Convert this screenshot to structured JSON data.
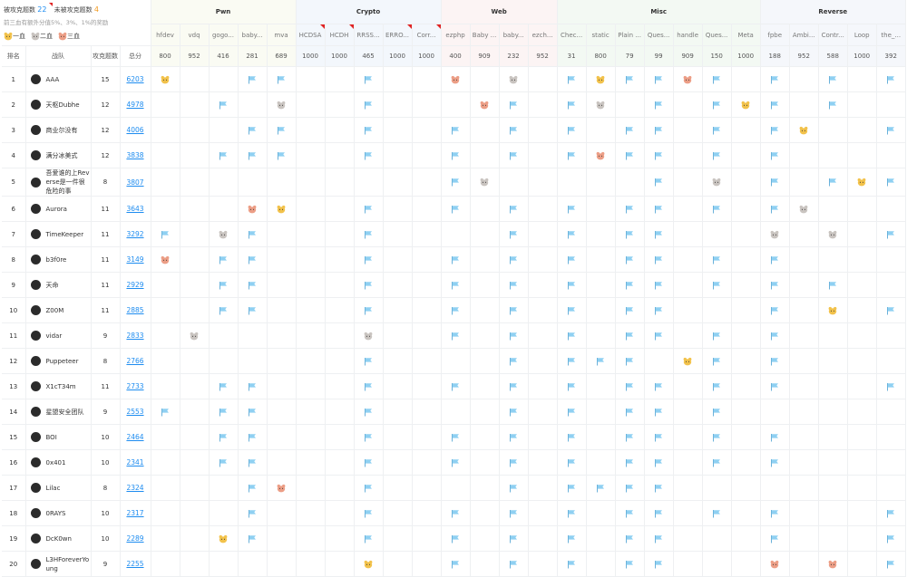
{
  "header": {
    "solved_label": "被攻克题数",
    "solved_count": 22,
    "unsolved_label": "未被攻克题数",
    "unsolved_count": 4,
    "bonus_note": "前三血有额外分值5%、3%、1%的奖励",
    "legend": [
      "一血",
      "二血",
      "三血"
    ]
  },
  "table": {
    "columns": [
      "排名",
      "战队",
      "攻克题数",
      "总分"
    ],
    "categories": [
      {
        "name": "Pwn",
        "color": "#fafbf3",
        "challenges": [
          {
            "name": "hfdev",
            "points": 800
          },
          {
            "name": "vdq",
            "points": 952
          },
          {
            "name": "gogo...",
            "points": 416
          },
          {
            "name": "baby...",
            "points": 281
          },
          {
            "name": "mva",
            "points": 689
          }
        ]
      },
      {
        "name": "Crypto",
        "color": "#f3f7fc",
        "challenges": [
          {
            "name": "HCDSA",
            "points": 1000,
            "unsolved": true
          },
          {
            "name": "HCDH",
            "points": 1000,
            "unsolved": true
          },
          {
            "name": "RRSS...",
            "points": 465
          },
          {
            "name": "ERRO...",
            "points": 1000,
            "unsolved": true
          },
          {
            "name": "Corr...",
            "points": 1000,
            "unsolved": true
          }
        ]
      },
      {
        "name": "Web",
        "color": "#fcf4f4",
        "challenges": [
          {
            "name": "ezphp",
            "points": 400
          },
          {
            "name": "Baby ...",
            "points": 909
          },
          {
            "name": "baby...",
            "points": 232
          },
          {
            "name": "ezch...",
            "points": 952
          }
        ]
      },
      {
        "name": "Misc",
        "color": "#f3f9f3",
        "challenges": [
          {
            "name": "Chec...",
            "points": 31
          },
          {
            "name": "static",
            "points": 800
          },
          {
            "name": "Plain ...",
            "points": 79
          },
          {
            "name": "Ques...",
            "points": 99
          },
          {
            "name": "handle",
            "points": 909
          },
          {
            "name": "Ques...",
            "points": 150
          },
          {
            "name": "Meta",
            "points": 1000
          }
        ]
      },
      {
        "name": "Reverse",
        "color": "#f5f7fb",
        "challenges": [
          {
            "name": "fpbe",
            "points": 188
          },
          {
            "name": "Ambi...",
            "points": 952
          },
          {
            "name": "Contr...",
            "points": 588
          },
          {
            "name": "Loop",
            "points": 1000
          },
          {
            "name": "the_...",
            "points": 392
          }
        ]
      }
    ],
    "teams": [
      {
        "rank": 1,
        "name": "AAA",
        "solved": 15,
        "score": 6203,
        "cells": [
          "gold",
          null,
          null,
          "flag",
          "flag",
          null,
          null,
          "flag",
          null,
          null,
          "bronze",
          null,
          "silver",
          null,
          "flag",
          "gold",
          "flag",
          "flag",
          "bronze",
          "flag",
          null,
          "flag",
          null,
          "flag",
          null,
          "flag"
        ]
      },
      {
        "rank": 2,
        "name": "天枢Dubhe",
        "solved": 12,
        "score": 4978,
        "cells": [
          null,
          null,
          "flag",
          null,
          "silver",
          null,
          null,
          "flag",
          null,
          null,
          null,
          "bronze",
          "flag",
          null,
          "flag",
          "silver",
          null,
          "flag",
          null,
          "flag",
          "gold",
          "flag",
          null,
          "flag",
          null,
          null
        ]
      },
      {
        "rank": 3,
        "name": "商业尔没有",
        "solved": 12,
        "score": 4006,
        "cells": [
          null,
          null,
          null,
          "flag",
          "flag",
          null,
          null,
          "flag",
          null,
          null,
          "flag",
          null,
          "flag",
          null,
          "flag",
          null,
          "flag",
          "flag",
          null,
          "flag",
          null,
          "flag",
          "gold",
          null,
          null,
          "flag"
        ]
      },
      {
        "rank": 4,
        "name": "满分冰美式",
        "solved": 12,
        "score": 3838,
        "cells": [
          null,
          null,
          "flag",
          "flag",
          "flag",
          null,
          null,
          "flag",
          null,
          null,
          "flag",
          null,
          "flag",
          null,
          "flag",
          "bronze",
          "flag",
          "flag",
          null,
          "flag",
          null,
          "flag",
          null,
          null,
          null,
          null
        ]
      },
      {
        "rank": 5,
        "name": "吾爱谁的上Reverse是一件很危险的事",
        "solved": 8,
        "score": 3807,
        "cells": [
          null,
          null,
          null,
          null,
          null,
          null,
          null,
          null,
          null,
          null,
          "flag",
          "silver",
          null,
          null,
          null,
          null,
          null,
          "flag",
          null,
          "silver",
          null,
          "flag",
          null,
          "flag",
          "gold",
          "flag"
        ]
      },
      {
        "rank": 6,
        "name": "Aurora",
        "solved": 11,
        "score": 3643,
        "cells": [
          null,
          null,
          null,
          "bronze",
          "gold",
          null,
          null,
          "flag",
          null,
          null,
          "flag",
          null,
          "flag",
          null,
          "flag",
          null,
          "flag",
          "flag",
          null,
          "flag",
          null,
          "flag",
          "silver",
          null,
          null,
          null
        ]
      },
      {
        "rank": 7,
        "name": "TimeKeeper",
        "solved": 11,
        "score": 3292,
        "cells": [
          "flag",
          null,
          "silver",
          "flag",
          null,
          null,
          null,
          "flag",
          null,
          null,
          null,
          null,
          "flag",
          null,
          "flag",
          null,
          "flag",
          "flag",
          null,
          null,
          null,
          "silver",
          null,
          "silver",
          null,
          "flag"
        ]
      },
      {
        "rank": 8,
        "name": "b3f0re",
        "solved": 11,
        "score": 3149,
        "cells": [
          "bronze",
          null,
          "flag",
          "flag",
          null,
          null,
          null,
          "flag",
          null,
          null,
          "flag",
          null,
          "flag",
          null,
          "flag",
          null,
          "flag",
          "flag",
          null,
          "flag",
          null,
          "flag",
          null,
          null,
          null,
          null
        ]
      },
      {
        "rank": 9,
        "name": "天命",
        "solved": 11,
        "score": 2929,
        "cells": [
          null,
          null,
          "flag",
          "flag",
          null,
          null,
          null,
          "flag",
          null,
          null,
          "flag",
          null,
          "flag",
          null,
          "flag",
          null,
          "flag",
          "flag",
          null,
          "flag",
          null,
          "flag",
          null,
          "flag",
          null,
          null
        ]
      },
      {
        "rank": 10,
        "name": "Z00M",
        "solved": 11,
        "score": 2885,
        "cells": [
          null,
          null,
          "flag",
          "flag",
          null,
          null,
          null,
          "flag",
          null,
          null,
          "flag",
          null,
          "flag",
          null,
          "flag",
          null,
          "flag",
          "flag",
          null,
          null,
          null,
          "flag",
          null,
          "gold",
          null,
          "flag"
        ]
      },
      {
        "rank": 11,
        "name": "vidar",
        "solved": 9,
        "score": 2833,
        "cells": [
          null,
          "silver",
          null,
          null,
          null,
          null,
          null,
          "silver",
          null,
          null,
          "flag",
          null,
          "flag",
          null,
          "flag",
          null,
          "flag",
          "flag",
          null,
          "flag",
          null,
          "flag",
          null,
          null,
          null,
          null
        ]
      },
      {
        "rank": 12,
        "name": "Puppeteer",
        "solved": 8,
        "score": 2766,
        "cells": [
          null,
          null,
          null,
          null,
          null,
          null,
          null,
          "flag",
          null,
          null,
          null,
          null,
          "flag",
          null,
          "flag",
          "flag",
          "flag",
          null,
          "gold",
          "flag",
          null,
          "flag",
          null,
          null,
          null,
          null
        ]
      },
      {
        "rank": 13,
        "name": "X1cT34m",
        "solved": 11,
        "score": 2733,
        "cells": [
          null,
          null,
          "flag",
          "flag",
          null,
          null,
          null,
          "flag",
          null,
          null,
          "flag",
          null,
          "flag",
          null,
          "flag",
          null,
          "flag",
          "flag",
          null,
          "flag",
          null,
          "flag",
          null,
          null,
          null,
          "flag"
        ]
      },
      {
        "rank": 14,
        "name": "星盟安全团队",
        "solved": 9,
        "score": 2553,
        "cells": [
          "flag",
          null,
          "flag",
          "flag",
          null,
          null,
          null,
          "flag",
          null,
          null,
          null,
          null,
          "flag",
          null,
          "flag",
          null,
          "flag",
          "flag",
          null,
          "flag",
          null,
          null,
          null,
          null,
          null,
          null
        ]
      },
      {
        "rank": 15,
        "name": "BOI",
        "solved": 10,
        "score": 2464,
        "cells": [
          null,
          null,
          "flag",
          "flag",
          null,
          null,
          null,
          "flag",
          null,
          null,
          "flag",
          null,
          "flag",
          null,
          "flag",
          null,
          "flag",
          "flag",
          null,
          "flag",
          null,
          "flag",
          null,
          null,
          null,
          null
        ]
      },
      {
        "rank": 16,
        "name": "0x401",
        "solved": 10,
        "score": 2341,
        "cells": [
          null,
          null,
          "flag",
          "flag",
          null,
          null,
          null,
          "flag",
          null,
          null,
          "flag",
          null,
          "flag",
          null,
          "flag",
          null,
          "flag",
          "flag",
          null,
          "flag",
          null,
          "flag",
          null,
          null,
          null,
          null
        ]
      },
      {
        "rank": 17,
        "name": "Lilac",
        "solved": 8,
        "score": 2324,
        "cells": [
          null,
          null,
          null,
          "flag",
          "bronze",
          null,
          null,
          "flag",
          null,
          null,
          null,
          null,
          "flag",
          null,
          "flag",
          "flag",
          "flag",
          "flag",
          null,
          null,
          null,
          null,
          null,
          null,
          null,
          null
        ]
      },
      {
        "rank": 18,
        "name": "0RAYS",
        "solved": 10,
        "score": 2317,
        "cells": [
          null,
          null,
          null,
          "flag",
          null,
          null,
          null,
          "flag",
          null,
          null,
          "flag",
          null,
          "flag",
          null,
          "flag",
          null,
          "flag",
          "flag",
          null,
          "flag",
          null,
          "flag",
          null,
          null,
          null,
          "flag"
        ]
      },
      {
        "rank": 19,
        "name": "DcK0wn",
        "solved": 10,
        "score": 2289,
        "cells": [
          null,
          null,
          "gold",
          "flag",
          null,
          null,
          null,
          "flag",
          null,
          null,
          "flag",
          null,
          "flag",
          null,
          "flag",
          null,
          "flag",
          "flag",
          null,
          null,
          null,
          "flag",
          null,
          null,
          null,
          "flag"
        ]
      },
      {
        "rank": 20,
        "name": "L3HForeverYoung",
        "solved": 9,
        "score": 2255,
        "cells": [
          null,
          null,
          null,
          null,
          null,
          null,
          null,
          "gold",
          null,
          null,
          "flag",
          null,
          "flag",
          null,
          "flag",
          null,
          "flag",
          "flag",
          null,
          null,
          null,
          "bronze",
          null,
          "bronze",
          null,
          "flag"
        ]
      }
    ]
  }
}
